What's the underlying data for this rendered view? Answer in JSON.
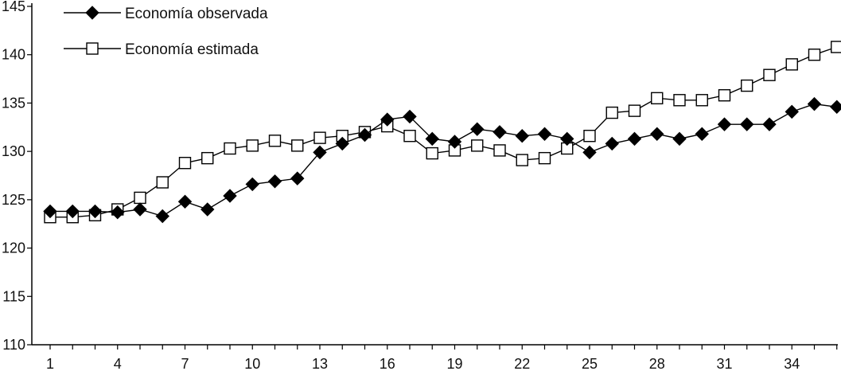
{
  "chart_data": {
    "type": "line",
    "title": "",
    "xlabel": "",
    "ylabel": "",
    "x": [
      1,
      2,
      3,
      4,
      5,
      6,
      7,
      8,
      9,
      10,
      11,
      12,
      13,
      14,
      15,
      16,
      17,
      18,
      19,
      20,
      21,
      22,
      23,
      24,
      25,
      26,
      27,
      28,
      29,
      30,
      31,
      32,
      33,
      34,
      35,
      36
    ],
    "x_tick_labels": [
      "1",
      "4",
      "7",
      "10",
      "13",
      "16",
      "19",
      "22",
      "25",
      "28",
      "31",
      "34"
    ],
    "x_tick_values": [
      1,
      4,
      7,
      10,
      13,
      16,
      19,
      22,
      25,
      28,
      31,
      34
    ],
    "ylim": [
      110,
      145
    ],
    "y_ticks": [
      110,
      115,
      120,
      125,
      130,
      135,
      140,
      145
    ],
    "y_tick_labels": [
      "110",
      "115",
      "120",
      "125",
      "130",
      "135",
      "140",
      "145"
    ],
    "grid": false,
    "legend_position": "top-left",
    "series": [
      {
        "name": "Economía observada",
        "marker": "filled-diamond",
        "color": "#000000",
        "values": [
          123.8,
          123.8,
          123.8,
          123.7,
          124.0,
          123.3,
          124.8,
          124.0,
          125.4,
          126.6,
          126.9,
          127.2,
          129.9,
          130.8,
          131.7,
          133.3,
          133.6,
          131.3,
          131.0,
          132.3,
          132.0,
          131.6,
          131.8,
          131.3,
          129.9,
          130.8,
          131.3,
          131.8,
          131.3,
          131.8,
          132.8,
          132.8,
          132.8,
          134.1,
          134.9,
          134.6
        ]
      },
      {
        "name": "Economía estimada",
        "marker": "open-square",
        "color": "#000000",
        "values": [
          123.2,
          123.2,
          123.4,
          124.0,
          125.2,
          126.8,
          128.8,
          129.3,
          130.3,
          130.6,
          131.1,
          130.6,
          131.4,
          131.6,
          132.0,
          132.6,
          131.6,
          129.8,
          130.1,
          130.6,
          130.1,
          129.1,
          129.3,
          130.3,
          131.6,
          134.0,
          134.2,
          135.5,
          135.3,
          135.3,
          135.8,
          136.8,
          137.9,
          139.0,
          140.0,
          140.8
        ]
      }
    ]
  }
}
